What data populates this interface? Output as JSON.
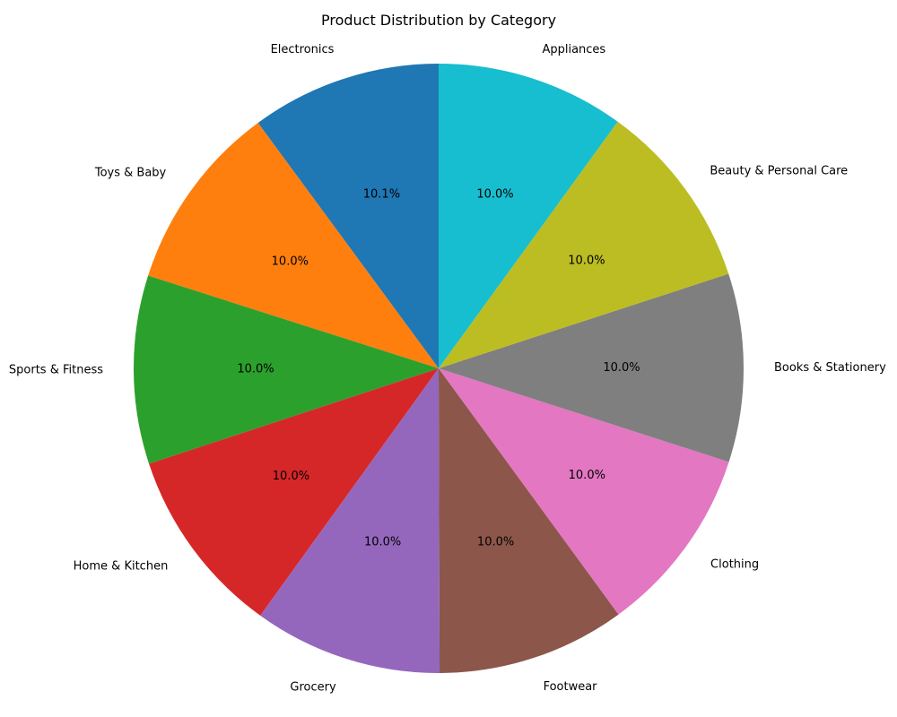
{
  "chart_data": {
    "type": "pie",
    "title": "Product Distribution by Category",
    "start_angle_deg": 90,
    "direction": "counterclockwise",
    "slices": [
      {
        "label": "Electronics",
        "value": 10.1,
        "pct_label": "10.1%",
        "color": "#1f77b4"
      },
      {
        "label": "Toys & Baby",
        "value": 10.0,
        "pct_label": "10.0%",
        "color": "#ff7f0e"
      },
      {
        "label": "Sports & Fitness",
        "value": 10.0,
        "pct_label": "10.0%",
        "color": "#2ca02c"
      },
      {
        "label": "Home & Kitchen",
        "value": 10.0,
        "pct_label": "10.0%",
        "color": "#d62728"
      },
      {
        "label": "Grocery",
        "value": 10.0,
        "pct_label": "10.0%",
        "color": "#9467bd"
      },
      {
        "label": "Footwear",
        "value": 10.0,
        "pct_label": "10.0%",
        "color": "#8c564b"
      },
      {
        "label": "Clothing",
        "value": 10.0,
        "pct_label": "10.0%",
        "color": "#e377c2"
      },
      {
        "label": "Books & Stationery",
        "value": 10.0,
        "pct_label": "10.0%",
        "color": "#7f7f7f"
      },
      {
        "label": "Beauty & Personal Care",
        "value": 10.0,
        "pct_label": "10.0%",
        "color": "#bcbd22"
      },
      {
        "label": "Appliances",
        "value": 10.0,
        "pct_label": "10.0%",
        "color": "#17becf"
      }
    ]
  }
}
